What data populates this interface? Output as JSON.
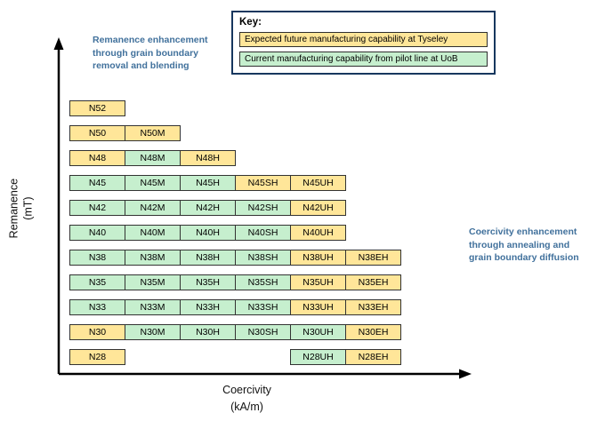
{
  "palette": {
    "future": "#FFE699",
    "current": "#C6EFCE",
    "cell_border": "#333333",
    "annotation": "#41719C",
    "key_border": "#17375E",
    "axis": "#000000"
  },
  "key": {
    "title": "Key:",
    "items": [
      {
        "label": "Expected future manufacturing capability at Tyseley",
        "status": "future"
      },
      {
        "label": "Current manufacturing capability from pilot line at UoB",
        "status": "current"
      }
    ]
  },
  "annotations": {
    "remanence": "Remanence enhancement through grain boundary removal and blending",
    "coercivity": "Coercivity enhancement through annealing and grain boundary diffusion"
  },
  "axes": {
    "y_line1": "Remanence",
    "y_line2": "(mT)",
    "x_line1": "Coercivity",
    "x_line2": "(kA/m)"
  },
  "chart_data": {
    "type": "table",
    "x_axis_label": "Coercivity (kA/m)",
    "y_axis_label": "Remanence (mT)",
    "legend": {
      "future": "Expected future manufacturing capability at Tyseley",
      "current": "Current manufacturing capability from pilot line at UoB"
    },
    "columns": [
      "base",
      "M",
      "H",
      "SH",
      "UH",
      "EH"
    ],
    "rows": [
      {
        "grade": "N52",
        "cells": [
          {
            "col": 0,
            "label": "N52",
            "status": "future"
          }
        ]
      },
      {
        "grade": "N50",
        "cells": [
          {
            "col": 0,
            "label": "N50",
            "status": "future"
          },
          {
            "col": 1,
            "label": "N50M",
            "status": "future"
          }
        ]
      },
      {
        "grade": "N48",
        "cells": [
          {
            "col": 0,
            "label": "N48",
            "status": "future"
          },
          {
            "col": 1,
            "label": "N48M",
            "status": "current"
          },
          {
            "col": 2,
            "label": "N48H",
            "status": "future"
          }
        ]
      },
      {
        "grade": "N45",
        "cells": [
          {
            "col": 0,
            "label": "N45",
            "status": "current"
          },
          {
            "col": 1,
            "label": "N45M",
            "status": "current"
          },
          {
            "col": 2,
            "label": "N45H",
            "status": "current"
          },
          {
            "col": 3,
            "label": "N45SH",
            "status": "future"
          },
          {
            "col": 4,
            "label": "N45UH",
            "status": "future"
          }
        ]
      },
      {
        "grade": "N42",
        "cells": [
          {
            "col": 0,
            "label": "N42",
            "status": "current"
          },
          {
            "col": 1,
            "label": "N42M",
            "status": "current"
          },
          {
            "col": 2,
            "label": "N42H",
            "status": "current"
          },
          {
            "col": 3,
            "label": "N42SH",
            "status": "current"
          },
          {
            "col": 4,
            "label": "N42UH",
            "status": "future"
          }
        ]
      },
      {
        "grade": "N40",
        "cells": [
          {
            "col": 0,
            "label": "N40",
            "status": "current"
          },
          {
            "col": 1,
            "label": "N40M",
            "status": "current"
          },
          {
            "col": 2,
            "label": "N40H",
            "status": "current"
          },
          {
            "col": 3,
            "label": "N40SH",
            "status": "current"
          },
          {
            "col": 4,
            "label": "N40UH",
            "status": "future"
          }
        ]
      },
      {
        "grade": "N38",
        "cells": [
          {
            "col": 0,
            "label": "N38",
            "status": "current"
          },
          {
            "col": 1,
            "label": "N38M",
            "status": "current"
          },
          {
            "col": 2,
            "label": "N38H",
            "status": "current"
          },
          {
            "col": 3,
            "label": "N38SH",
            "status": "current"
          },
          {
            "col": 4,
            "label": "N38UH",
            "status": "future"
          },
          {
            "col": 5,
            "label": "N38EH",
            "status": "future"
          }
        ]
      },
      {
        "grade": "N35",
        "cells": [
          {
            "col": 0,
            "label": "N35",
            "status": "current"
          },
          {
            "col": 1,
            "label": "N35M",
            "status": "current"
          },
          {
            "col": 2,
            "label": "N35H",
            "status": "current"
          },
          {
            "col": 3,
            "label": "N35SH",
            "status": "current"
          },
          {
            "col": 4,
            "label": "N35UH",
            "status": "future"
          },
          {
            "col": 5,
            "label": "N35EH",
            "status": "future"
          }
        ]
      },
      {
        "grade": "N33",
        "cells": [
          {
            "col": 0,
            "label": "N33",
            "status": "current"
          },
          {
            "col": 1,
            "label": "N33M",
            "status": "current"
          },
          {
            "col": 2,
            "label": "N33H",
            "status": "current"
          },
          {
            "col": 3,
            "label": "N33SH",
            "status": "current"
          },
          {
            "col": 4,
            "label": "N33UH",
            "status": "future"
          },
          {
            "col": 5,
            "label": "N33EH",
            "status": "future"
          }
        ]
      },
      {
        "grade": "N30",
        "cells": [
          {
            "col": 0,
            "label": "N30",
            "status": "future"
          },
          {
            "col": 1,
            "label": "N30M",
            "status": "current"
          },
          {
            "col": 2,
            "label": "N30H",
            "status": "current"
          },
          {
            "col": 3,
            "label": "N30SH",
            "status": "current"
          },
          {
            "col": 4,
            "label": "N30UH",
            "status": "current"
          },
          {
            "col": 5,
            "label": "N30EH",
            "status": "future"
          }
        ]
      },
      {
        "grade": "N28",
        "cells": [
          {
            "col": 0,
            "label": "N28",
            "status": "future"
          },
          {
            "col": 4,
            "label": "N28UH",
            "status": "current"
          },
          {
            "col": 5,
            "label": "N28EH",
            "status": "future"
          }
        ]
      }
    ]
  }
}
